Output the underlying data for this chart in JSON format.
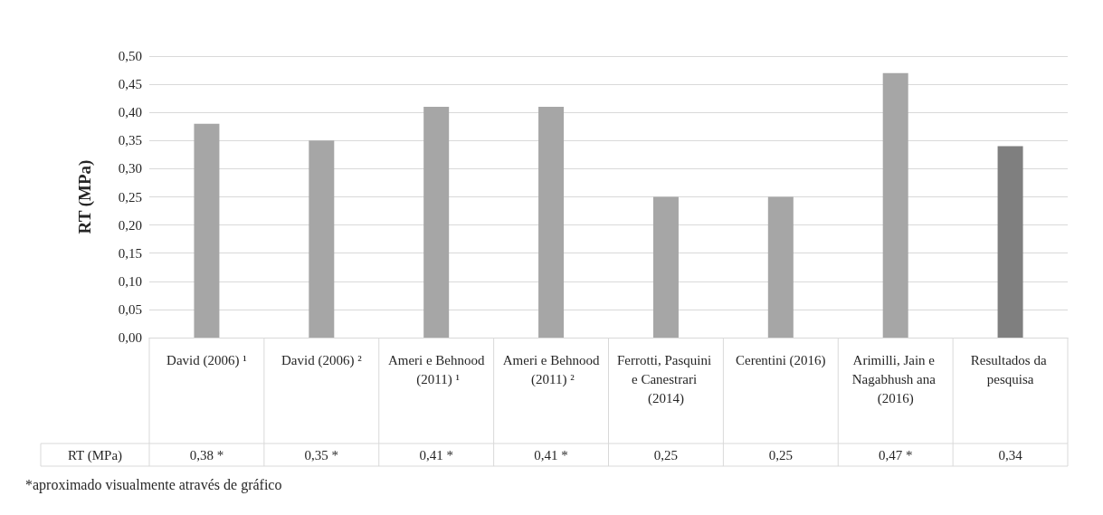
{
  "chart_data": {
    "type": "bar",
    "ylabel": "RT (MPa)",
    "categories": [
      "David (2006) ¹",
      "David (2006) ²",
      "Ameri e Behnood (2011) ¹",
      "Ameri e Behnood (2011) ²",
      "Ferrotti, Pasquini e Canestrari (2014)",
      "Cerentini (2016)",
      "Arimilli, Jain e Nagabhush ana (2016)",
      "Resultados da pesquisa"
    ],
    "values": [
      0.38,
      0.35,
      0.41,
      0.41,
      0.25,
      0.25,
      0.47,
      0.34
    ],
    "value_labels": [
      "0,38 *",
      "0,35 *",
      "0,41 *",
      "0,41 *",
      "0,25",
      "0,25",
      "0,47 *",
      "0,34"
    ],
    "colors": [
      "#a6a6a6",
      "#a6a6a6",
      "#a6a6a6",
      "#a6a6a6",
      "#a6a6a6",
      "#a6a6a6",
      "#a6a6a6",
      "#7f7f7f"
    ],
    "ylim": [
      0,
      0.5
    ],
    "yticks": [
      {
        "value": 0,
        "label": "0,00"
      },
      {
        "value": 0.05,
        "label": "0,05"
      },
      {
        "value": 0.1,
        "label": "0,10"
      },
      {
        "value": 0.15,
        "label": "0,15"
      },
      {
        "value": 0.2,
        "label": "0,20"
      },
      {
        "value": 0.25,
        "label": "0,25"
      },
      {
        "value": 0.3,
        "label": "0,30"
      },
      {
        "value": 0.35,
        "label": "0,35"
      },
      {
        "value": 0.4,
        "label": "0,40"
      },
      {
        "value": 0.45,
        "label": "0,45"
      },
      {
        "value": 0.5,
        "label": "0,50"
      }
    ],
    "grid": "y",
    "annotations": [
      "*aproximado visualmente através de gráfico"
    ]
  }
}
